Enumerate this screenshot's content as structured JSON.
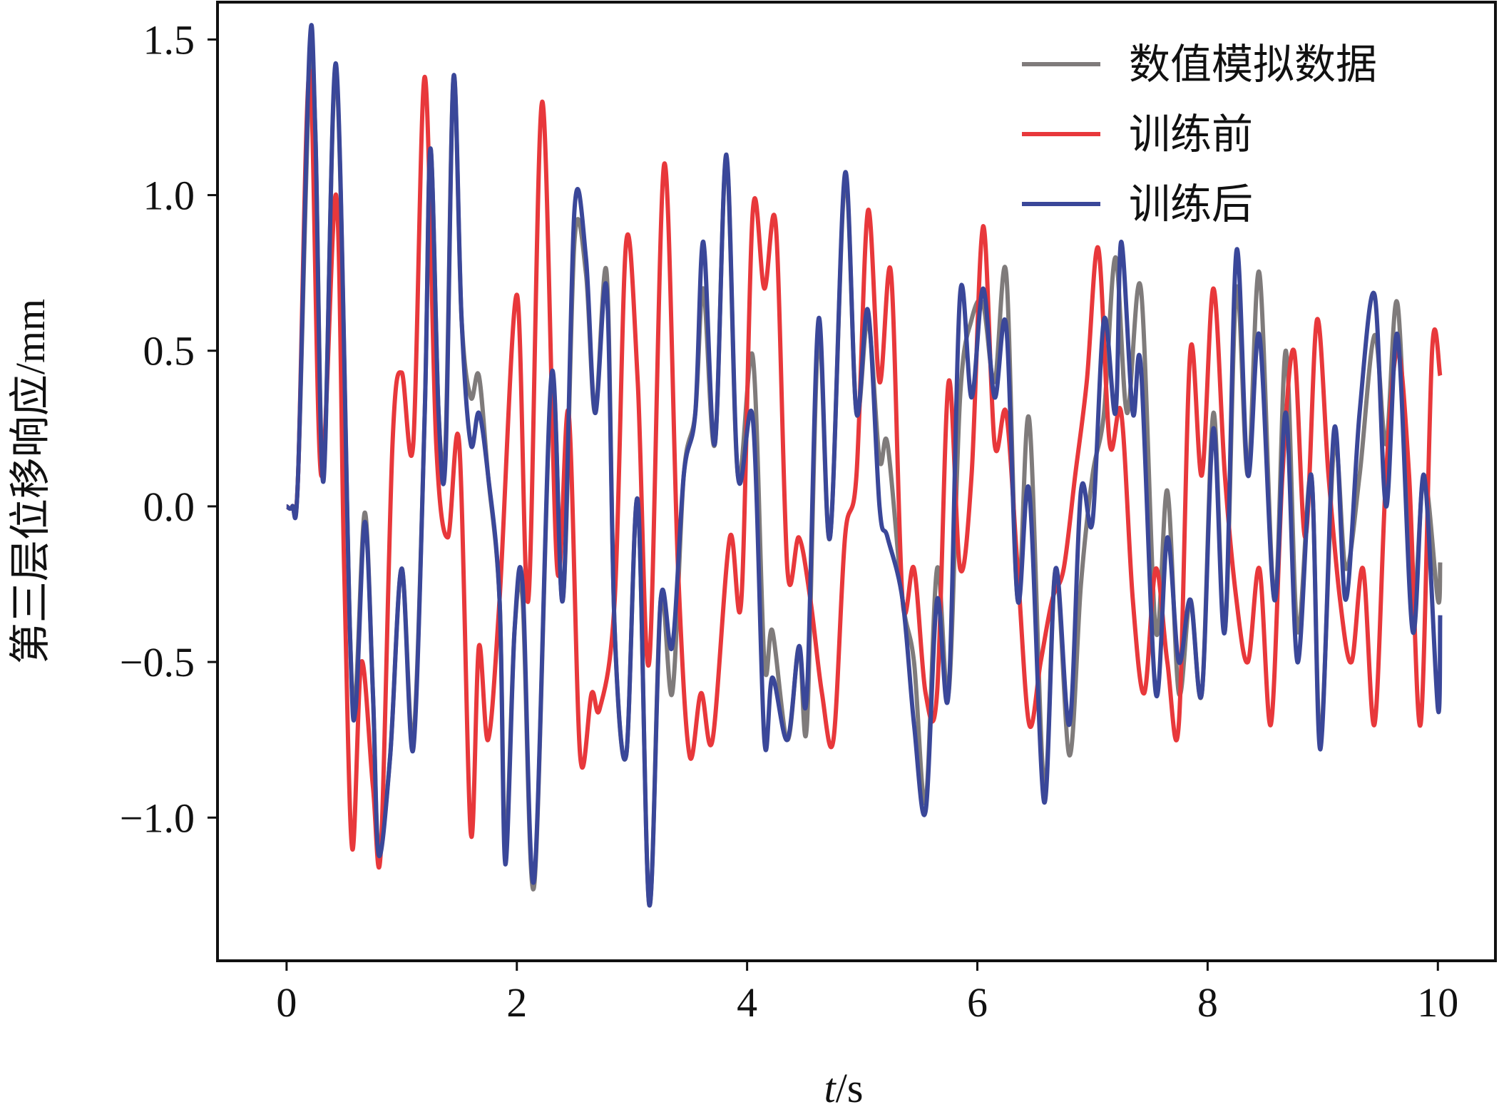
{
  "chart_data": {
    "type": "line",
    "xlabel_italic": "t",
    "xlabel_unit": "/s",
    "ylabel": "第三层位移响应/mm",
    "xlim": [
      -0.6,
      10.5
    ],
    "ylim": [
      -1.46,
      1.62
    ],
    "x_ticks": [
      0,
      2,
      4,
      6,
      8,
      10
    ],
    "x_tick_labels": [
      "0",
      "2",
      "4",
      "6",
      "8",
      "10"
    ],
    "y_ticks": [
      -1.0,
      -0.5,
      0.0,
      0.5,
      1.0,
      1.5
    ],
    "y_tick_labels": [
      "−1.0",
      "−0.5",
      "0.0",
      "0.5",
      "1.0",
      "1.5"
    ],
    "grid": false,
    "legend_position": "top-right",
    "series": [
      {
        "name": "数值模拟数据",
        "color": "#7f7b7b",
        "points": [
          [
            0,
            0
          ],
          [
            0.05,
            0
          ],
          [
            0.1,
            0.1
          ],
          [
            0.2,
            1.4
          ],
          [
            0.25,
            1.2
          ],
          [
            0.32,
            0.1
          ],
          [
            0.43,
            1.4
          ],
          [
            0.55,
            -0.4
          ],
          [
            0.6,
            -0.6
          ],
          [
            0.68,
            -0.02
          ],
          [
            0.75,
            -0.6
          ],
          [
            0.8,
            -1.1
          ],
          [
            0.9,
            -0.8
          ],
          [
            1.0,
            -0.2
          ],
          [
            1.1,
            -0.75
          ],
          [
            1.2,
            0.3
          ],
          [
            1.25,
            1.15
          ],
          [
            1.32,
            0.3
          ],
          [
            1.38,
            0.2
          ],
          [
            1.45,
            1.38
          ],
          [
            1.52,
            0.6
          ],
          [
            1.6,
            0.35
          ],
          [
            1.67,
            0.42
          ],
          [
            1.75,
            0.1
          ],
          [
            1.85,
            -0.3
          ],
          [
            1.9,
            -1.1
          ],
          [
            1.98,
            -0.4
          ],
          [
            2.05,
            -0.3
          ],
          [
            2.15,
            -1.22
          ],
          [
            2.3,
            0.4
          ],
          [
            2.4,
            -0.3
          ],
          [
            2.5,
            0.85
          ],
          [
            2.6,
            0.75
          ],
          [
            2.68,
            0.3
          ],
          [
            2.78,
            0.75
          ],
          [
            2.85,
            -0.4
          ],
          [
            2.95,
            -0.8
          ],
          [
            3.05,
            0.02
          ],
          [
            3.15,
            -1.28
          ],
          [
            3.25,
            -0.3
          ],
          [
            3.35,
            -0.6
          ],
          [
            3.45,
            0.1
          ],
          [
            3.55,
            0.3
          ],
          [
            3.62,
            0.7
          ],
          [
            3.72,
            0.2
          ],
          [
            3.82,
            1.12
          ],
          [
            3.92,
            0.1
          ],
          [
            4.05,
            0.48
          ],
          [
            4.15,
            -0.5
          ],
          [
            4.22,
            -0.4
          ],
          [
            4.35,
            -0.75
          ],
          [
            4.45,
            -0.45
          ],
          [
            4.52,
            -0.7
          ],
          [
            4.62,
            0.55
          ],
          [
            4.72,
            -0.1
          ],
          [
            4.85,
            1.05
          ],
          [
            4.95,
            0.3
          ],
          [
            5.05,
            0.6
          ],
          [
            5.15,
            0.15
          ],
          [
            5.22,
            0.2
          ],
          [
            5.35,
            -0.3
          ],
          [
            5.45,
            -0.5
          ],
          [
            5.55,
            -0.95
          ],
          [
            5.65,
            -0.2
          ],
          [
            5.75,
            -0.6
          ],
          [
            5.85,
            0.35
          ],
          [
            5.95,
            0.6
          ],
          [
            6.05,
            0.65
          ],
          [
            6.15,
            0.4
          ],
          [
            6.25,
            0.75
          ],
          [
            6.35,
            -0.3
          ],
          [
            6.45,
            0.28
          ],
          [
            6.58,
            -0.9
          ],
          [
            6.68,
            -0.2
          ],
          [
            6.8,
            -0.8
          ],
          [
            6.9,
            -0.25
          ],
          [
            7.0,
            0.1
          ],
          [
            7.1,
            0.3
          ],
          [
            7.2,
            0.8
          ],
          [
            7.3,
            0.3
          ],
          [
            7.42,
            0.7
          ],
          [
            7.55,
            -0.4
          ],
          [
            7.65,
            0.05
          ],
          [
            7.75,
            -0.6
          ],
          [
            7.85,
            -0.3
          ],
          [
            7.95,
            -0.6
          ],
          [
            8.05,
            0.3
          ],
          [
            8.15,
            -0.4
          ],
          [
            8.25,
            0.7
          ],
          [
            8.35,
            0.1
          ],
          [
            8.45,
            0.75
          ],
          [
            8.58,
            -0.3
          ],
          [
            8.68,
            0.5
          ],
          [
            8.78,
            -0.4
          ],
          [
            8.9,
            0.1
          ],
          [
            8.98,
            -0.75
          ],
          [
            9.1,
            0.2
          ],
          [
            9.2,
            -0.2
          ],
          [
            9.32,
            0.1
          ],
          [
            9.45,
            0.55
          ],
          [
            9.55,
            0.2
          ],
          [
            9.65,
            0.65
          ],
          [
            9.78,
            -0.3
          ],
          [
            9.88,
            0.1
          ],
          [
            10.0,
            -0.3
          ],
          [
            10.02,
            -0.18
          ]
        ]
      },
      {
        "name": "训练前",
        "color": "#e8383b",
        "points": [
          [
            0,
            0
          ],
          [
            0.05,
            0
          ],
          [
            0.1,
            0.1
          ],
          [
            0.2,
            1.4
          ],
          [
            0.3,
            0.1
          ],
          [
            0.43,
            1.0
          ],
          [
            0.5,
            -0.2
          ],
          [
            0.57,
            -1.1
          ],
          [
            0.65,
            -0.5
          ],
          [
            0.75,
            -0.9
          ],
          [
            0.82,
            -1.1
          ],
          [
            0.92,
            0.2
          ],
          [
            1.0,
            0.43
          ],
          [
            1.1,
            0.2
          ],
          [
            1.2,
            1.38
          ],
          [
            1.3,
            0.2
          ],
          [
            1.4,
            -0.1
          ],
          [
            1.5,
            0.2
          ],
          [
            1.6,
            -1.05
          ],
          [
            1.67,
            -0.45
          ],
          [
            1.75,
            -0.75
          ],
          [
            1.85,
            -0.3
          ],
          [
            2.0,
            0.68
          ],
          [
            2.1,
            -0.3
          ],
          [
            2.22,
            1.3
          ],
          [
            2.35,
            -0.2
          ],
          [
            2.45,
            0.3
          ],
          [
            2.55,
            -0.8
          ],
          [
            2.65,
            -0.6
          ],
          [
            2.72,
            -0.65
          ],
          [
            2.85,
            -0.3
          ],
          [
            2.95,
            0.85
          ],
          [
            3.05,
            0.4
          ],
          [
            3.15,
            -0.5
          ],
          [
            3.28,
            1.1
          ],
          [
            3.4,
            -0.2
          ],
          [
            3.5,
            -0.8
          ],
          [
            3.6,
            -0.6
          ],
          [
            3.7,
            -0.75
          ],
          [
            3.85,
            -0.1
          ],
          [
            3.95,
            -0.3
          ],
          [
            4.05,
            0.95
          ],
          [
            4.15,
            0.7
          ],
          [
            4.25,
            0.9
          ],
          [
            4.35,
            -0.2
          ],
          [
            4.45,
            -0.1
          ],
          [
            4.55,
            -0.3
          ],
          [
            4.65,
            -0.6
          ],
          [
            4.75,
            -0.75
          ],
          [
            4.85,
            -0.1
          ],
          [
            4.95,
            0.1
          ],
          [
            5.05,
            0.95
          ],
          [
            5.15,
            0.4
          ],
          [
            5.25,
            0.75
          ],
          [
            5.35,
            -0.3
          ],
          [
            5.45,
            -0.2
          ],
          [
            5.55,
            -0.6
          ],
          [
            5.65,
            -0.6
          ],
          [
            5.75,
            0.4
          ],
          [
            5.85,
            -0.2
          ],
          [
            5.95,
            0.1
          ],
          [
            6.05,
            0.9
          ],
          [
            6.15,
            0.2
          ],
          [
            6.25,
            0.3
          ],
          [
            6.35,
            -0.2
          ],
          [
            6.45,
            -0.7
          ],
          [
            6.55,
            -0.5
          ],
          [
            6.65,
            -0.3
          ],
          [
            6.75,
            -0.2
          ],
          [
            6.85,
            0.1
          ],
          [
            6.95,
            0.4
          ],
          [
            7.05,
            0.83
          ],
          [
            7.15,
            0.2
          ],
          [
            7.25,
            0.3
          ],
          [
            7.35,
            -0.3
          ],
          [
            7.45,
            -0.6
          ],
          [
            7.55,
            -0.2
          ],
          [
            7.65,
            -0.5
          ],
          [
            7.75,
            -0.7
          ],
          [
            7.85,
            0.5
          ],
          [
            7.95,
            0.1
          ],
          [
            8.05,
            0.7
          ],
          [
            8.15,
            0.1
          ],
          [
            8.25,
            -0.3
          ],
          [
            8.35,
            -0.5
          ],
          [
            8.45,
            -0.2
          ],
          [
            8.55,
            -0.7
          ],
          [
            8.65,
            0.1
          ],
          [
            8.75,
            0.5
          ],
          [
            8.85,
            -0.1
          ],
          [
            8.95,
            0.6
          ],
          [
            9.05,
            0.1
          ],
          [
            9.15,
            -0.3
          ],
          [
            9.25,
            -0.5
          ],
          [
            9.35,
            -0.2
          ],
          [
            9.45,
            -0.7
          ],
          [
            9.55,
            0.1
          ],
          [
            9.65,
            0.5
          ],
          [
            9.75,
            0.1
          ],
          [
            9.85,
            -0.7
          ],
          [
            9.95,
            0.5
          ],
          [
            10.02,
            0.42
          ]
        ]
      },
      {
        "name": "训练后",
        "color": "#3a4799",
        "points": [
          [
            0,
            0
          ],
          [
            0.05,
            0
          ],
          [
            0.1,
            0.1
          ],
          [
            0.2,
            1.48
          ],
          [
            0.25,
            1.2
          ],
          [
            0.32,
            0.08
          ],
          [
            0.43,
            1.42
          ],
          [
            0.55,
            -0.4
          ],
          [
            0.6,
            -0.65
          ],
          [
            0.68,
            -0.05
          ],
          [
            0.75,
            -0.6
          ],
          [
            0.8,
            -1.12
          ],
          [
            0.9,
            -0.8
          ],
          [
            1.0,
            -0.2
          ],
          [
            1.1,
            -0.78
          ],
          [
            1.2,
            0.3
          ],
          [
            1.25,
            1.15
          ],
          [
            1.32,
            0.3
          ],
          [
            1.38,
            0.15
          ],
          [
            1.45,
            1.38
          ],
          [
            1.52,
            0.6
          ],
          [
            1.6,
            0.2
          ],
          [
            1.67,
            0.3
          ],
          [
            1.75,
            0.1
          ],
          [
            1.85,
            -0.3
          ],
          [
            1.9,
            -1.15
          ],
          [
            1.98,
            -0.4
          ],
          [
            2.05,
            -0.25
          ],
          [
            2.15,
            -1.2
          ],
          [
            2.3,
            0.42
          ],
          [
            2.4,
            -0.3
          ],
          [
            2.5,
            0.95
          ],
          [
            2.6,
            0.8
          ],
          [
            2.68,
            0.3
          ],
          [
            2.78,
            0.7
          ],
          [
            2.85,
            -0.4
          ],
          [
            2.95,
            -0.8
          ],
          [
            3.05,
            0.02
          ],
          [
            3.15,
            -1.28
          ],
          [
            3.25,
            -0.3
          ],
          [
            3.35,
            -0.45
          ],
          [
            3.45,
            0.1
          ],
          [
            3.55,
            0.3
          ],
          [
            3.62,
            0.85
          ],
          [
            3.72,
            0.2
          ],
          [
            3.82,
            1.13
          ],
          [
            3.92,
            0.1
          ],
          [
            4.05,
            0.28
          ],
          [
            4.15,
            -0.75
          ],
          [
            4.22,
            -0.55
          ],
          [
            4.35,
            -0.75
          ],
          [
            4.45,
            -0.45
          ],
          [
            4.52,
            -0.6
          ],
          [
            4.62,
            0.6
          ],
          [
            4.72,
            -0.1
          ],
          [
            4.85,
            1.07
          ],
          [
            4.95,
            0.3
          ],
          [
            5.05,
            0.63
          ],
          [
            5.15,
            0.0
          ],
          [
            5.22,
            -0.1
          ],
          [
            5.35,
            -0.3
          ],
          [
            5.45,
            -0.7
          ],
          [
            5.55,
            -0.98
          ],
          [
            5.65,
            -0.3
          ],
          [
            5.75,
            -0.6
          ],
          [
            5.85,
            0.68
          ],
          [
            5.95,
            0.35
          ],
          [
            6.05,
            0.7
          ],
          [
            6.15,
            0.35
          ],
          [
            6.25,
            0.58
          ],
          [
            6.35,
            -0.3
          ],
          [
            6.45,
            0.05
          ],
          [
            6.58,
            -0.95
          ],
          [
            6.68,
            -0.2
          ],
          [
            6.8,
            -0.7
          ],
          [
            6.9,
            0.05
          ],
          [
            7.0,
            -0.05
          ],
          [
            7.1,
            0.6
          ],
          [
            7.2,
            0.3
          ],
          [
            7.25,
            0.85
          ],
          [
            7.35,
            0.3
          ],
          [
            7.42,
            0.45
          ],
          [
            7.55,
            -0.6
          ],
          [
            7.65,
            -0.1
          ],
          [
            7.75,
            -0.5
          ],
          [
            7.85,
            -0.3
          ],
          [
            7.95,
            -0.6
          ],
          [
            8.05,
            0.25
          ],
          [
            8.15,
            -0.4
          ],
          [
            8.25,
            0.82
          ],
          [
            8.35,
            0.1
          ],
          [
            8.45,
            0.55
          ],
          [
            8.58,
            -0.3
          ],
          [
            8.68,
            0.3
          ],
          [
            8.78,
            -0.5
          ],
          [
            8.9,
            0.1
          ],
          [
            8.98,
            -0.78
          ],
          [
            9.1,
            0.25
          ],
          [
            9.2,
            -0.3
          ],
          [
            9.32,
            0.3
          ],
          [
            9.45,
            0.68
          ],
          [
            9.55,
            0.0
          ],
          [
            9.65,
            0.55
          ],
          [
            9.78,
            -0.4
          ],
          [
            9.88,
            0.1
          ],
          [
            10.0,
            -0.65
          ],
          [
            10.02,
            -0.35
          ]
        ]
      }
    ]
  }
}
